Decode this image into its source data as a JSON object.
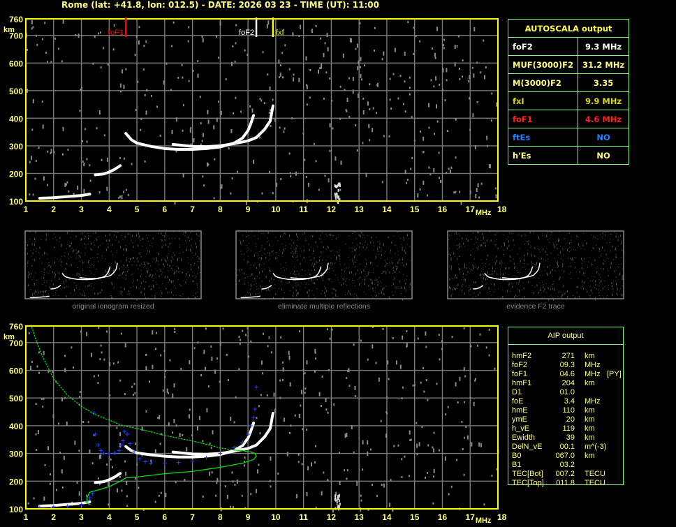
{
  "header": {
    "title": "Rome (lat: +41.8, lon: 012.5) - DATE: 2026 03 23 - TIME (UT): 11:00"
  },
  "autoscala": {
    "title": "AUTOSCALA output",
    "rows": [
      {
        "label": "foF2",
        "value": "9.3 MHz",
        "color": "#ffffff"
      },
      {
        "label": "MUF(3000)F2",
        "value": "31.2 MHz",
        "color": "#ffff80"
      },
      {
        "label": "M(3000)F2",
        "value": "3.35",
        "color": "#ffff80"
      },
      {
        "label": "fxI",
        "value": "9.9 MHz",
        "color": "#d8d800"
      },
      {
        "label": "foF1",
        "value": "4.6 MHz",
        "color": "#ff2020"
      },
      {
        "label": "ftEs",
        "value": "NO",
        "color": "#2080ff"
      },
      {
        "label": "h'Es",
        "value": "NO",
        "color": "#ffff80"
      }
    ]
  },
  "aip": {
    "title": "AIP output",
    "rows": [
      {
        "name": "hmF2",
        "value": "271",
        "unit": "km",
        "flag": ""
      },
      {
        "name": "foF2",
        "value": "09.3",
        "unit": "MHz",
        "flag": ""
      },
      {
        "name": "foF1",
        "value": "04.6",
        "unit": "MHz",
        "flag": "[PY]"
      },
      {
        "name": "hmF1",
        "value": "204",
        "unit": "km",
        "flag": ""
      },
      {
        "name": "D1",
        "value": "01.0",
        "unit": "",
        "flag": ""
      },
      {
        "name": "foE",
        "value": "3.4",
        "unit": "MHz",
        "flag": ""
      },
      {
        "name": "hmE",
        "value": "110",
        "unit": "km",
        "flag": ""
      },
      {
        "name": "ymE",
        "value": "20",
        "unit": "km",
        "flag": ""
      },
      {
        "name": "h_vE",
        "value": "119",
        "unit": "km",
        "flag": ""
      },
      {
        "name": "Ewidth",
        "value": "39",
        "unit": "km",
        "flag": ""
      },
      {
        "name": "DelN_vE",
        "value": "00.1",
        "unit": "m^(-3)",
        "flag": ""
      },
      {
        "name": "B0",
        "value": "067.0",
        "unit": "km",
        "flag": ""
      },
      {
        "name": "B1",
        "value": "03.2",
        "unit": "",
        "flag": ""
      },
      {
        "name": "TEC[Bot]",
        "value": "007.2",
        "unit": "TECU",
        "flag": ""
      },
      {
        "name": "TEC[Top]",
        "value": "011.8",
        "unit": "TECU",
        "flag": ""
      }
    ]
  },
  "thumbnails": [
    {
      "caption": "original ionogram resized"
    },
    {
      "caption": "eliminate multiple reflections"
    },
    {
      "caption": "evidence F2 trace"
    }
  ],
  "chart_data": [
    {
      "type": "scatter",
      "title": "",
      "xlabel": "MHz",
      "ylabel": "km",
      "xlim": [
        1,
        18
      ],
      "ylim": [
        100,
        760
      ],
      "xticks": [
        "1",
        "2",
        "3",
        "4",
        "5",
        "6",
        "7",
        "8",
        "9",
        "10",
        "11",
        "12",
        "13",
        "14",
        "15",
        "16",
        "17",
        "18"
      ],
      "yticks": [
        "760",
        "700",
        "600",
        "500",
        "400",
        "300",
        "200",
        "100"
      ],
      "grid": true,
      "markers": [
        {
          "label": "foF1",
          "freq": 4.6,
          "color": "#ff0000"
        },
        {
          "label": "foF2",
          "freq": 9.3,
          "color": "#ffffff"
        },
        {
          "label": "fxI",
          "freq": 9.9,
          "color": "#ffff00"
        }
      ],
      "series": [
        {
          "kind": "echo-E",
          "color": "#ffffff",
          "x": [
            1.5,
            2,
            2.5,
            3,
            3.3
          ],
          "y": [
            110,
            112,
            116,
            120,
            125
          ]
        },
        {
          "kind": "echo-F1",
          "color": "#ffffff",
          "x": [
            3.5,
            3.8,
            4.0,
            4.2,
            4.4
          ],
          "y": [
            195,
            198,
            205,
            215,
            228
          ]
        },
        {
          "kind": "echo-F2-o",
          "color": "#ffffff",
          "x": [
            4.6,
            4.8,
            5,
            5.5,
            6,
            6.5,
            7,
            7.5,
            8,
            8.5,
            8.8,
            9,
            9.1,
            9.2
          ],
          "y": [
            345,
            322,
            310,
            298,
            290,
            287,
            287,
            290,
            296,
            310,
            328,
            355,
            380,
            410
          ]
        },
        {
          "kind": "echo-F2-x",
          "color": "#ffffff",
          "x": [
            6.3,
            7,
            7.5,
            8,
            8.5,
            9,
            9.3,
            9.6,
            9.8,
            9.9
          ],
          "y": [
            305,
            298,
            297,
            300,
            308,
            318,
            330,
            360,
            390,
            445
          ]
        }
      ]
    },
    {
      "type": "scatter",
      "title": "",
      "xlabel": "MHz",
      "ylabel": "km",
      "xlim": [
        1,
        18
      ],
      "ylim": [
        100,
        760
      ],
      "xticks": [
        "1",
        "2",
        "3",
        "4",
        "5",
        "6",
        "7",
        "8",
        "9",
        "10",
        "11",
        "12",
        "13",
        "14",
        "15",
        "16",
        "17",
        "18"
      ],
      "yticks": [
        "760",
        "700",
        "600",
        "500",
        "400",
        "300",
        "200",
        "100"
      ],
      "grid": true,
      "series": [
        {
          "kind": "echo-E",
          "color": "#ffffff",
          "x": [
            1.5,
            2,
            2.5,
            3,
            3.3
          ],
          "y": [
            110,
            112,
            116,
            120,
            125
          ]
        },
        {
          "kind": "echo-F1",
          "color": "#ffffff",
          "x": [
            3.5,
            3.8,
            4.0,
            4.2,
            4.4
          ],
          "y": [
            195,
            198,
            205,
            215,
            228
          ]
        },
        {
          "kind": "echo-F2-o",
          "color": "#ffffff",
          "x": [
            4.6,
            4.8,
            5,
            5.5,
            6,
            6.5,
            7,
            7.5,
            8,
            8.5,
            8.8,
            9,
            9.1,
            9.2
          ],
          "y": [
            325,
            310,
            302,
            295,
            290,
            287,
            287,
            290,
            296,
            310,
            328,
            355,
            380,
            410
          ]
        },
        {
          "kind": "echo-F2-x",
          "color": "#ffffff",
          "x": [
            6.3,
            7,
            7.5,
            8,
            8.5,
            9,
            9.3,
            9.6,
            9.8,
            9.9
          ],
          "y": [
            305,
            298,
            297,
            300,
            308,
            318,
            330,
            360,
            390,
            445
          ]
        },
        {
          "kind": "aip-E",
          "color": "#2040ff",
          "x": [
            1,
            1.5,
            2,
            2.5,
            3,
            3.2,
            3.3,
            3.4
          ],
          "y": [
            105,
            105,
            107,
            110,
            116,
            125,
            140,
            155
          ]
        },
        {
          "kind": "aip-F",
          "color": "#2040ff",
          "x": [
            3.45,
            3.5,
            3.6,
            3.7,
            3.8,
            4.0,
            4.2,
            4.35,
            4.45,
            4.5,
            4.55,
            4.65,
            4.75,
            4.9,
            5.1,
            5.3,
            5.5,
            6,
            6.5,
            7,
            7.5,
            8,
            8.5,
            8.8,
            9,
            9.1,
            9.2,
            9.25,
            9.3
          ],
          "y": [
            445,
            370,
            330,
            310,
            300,
            300,
            302,
            310,
            330,
            345,
            380,
            370,
            335,
            305,
            280,
            270,
            265,
            265,
            268,
            272,
            285,
            300,
            320,
            340,
            370,
            400,
            430,
            460,
            540
          ]
        },
        {
          "kind": "aip-profile",
          "color": "#00e000",
          "x": [
            3.3,
            3.2,
            3.2,
            3.3,
            3.6,
            4,
            4.4,
            4.6,
            5,
            6,
            7,
            8,
            8.8,
            9.2,
            9.3,
            9.25,
            9.1,
            8.8,
            8.5
          ],
          "y": [
            117,
            120,
            140,
            160,
            168,
            180,
            200,
            212,
            215,
            227,
            235,
            250,
            265,
            278,
            290,
            300,
            305,
            310,
            312
          ]
        },
        {
          "kind": "aip-topside",
          "color": "#00e000",
          "dotted": true,
          "x": [
            8.5,
            8,
            7.5,
            7,
            6.5,
            6,
            5.5,
            5,
            4.5,
            4,
            3.5,
            3,
            2.5,
            2,
            1.8,
            1.6,
            1.4,
            1.2
          ],
          "y": [
            312,
            320,
            333,
            345,
            355,
            365,
            378,
            390,
            400,
            420,
            440,
            470,
            510,
            570,
            610,
            650,
            700,
            760
          ]
        }
      ]
    }
  ]
}
